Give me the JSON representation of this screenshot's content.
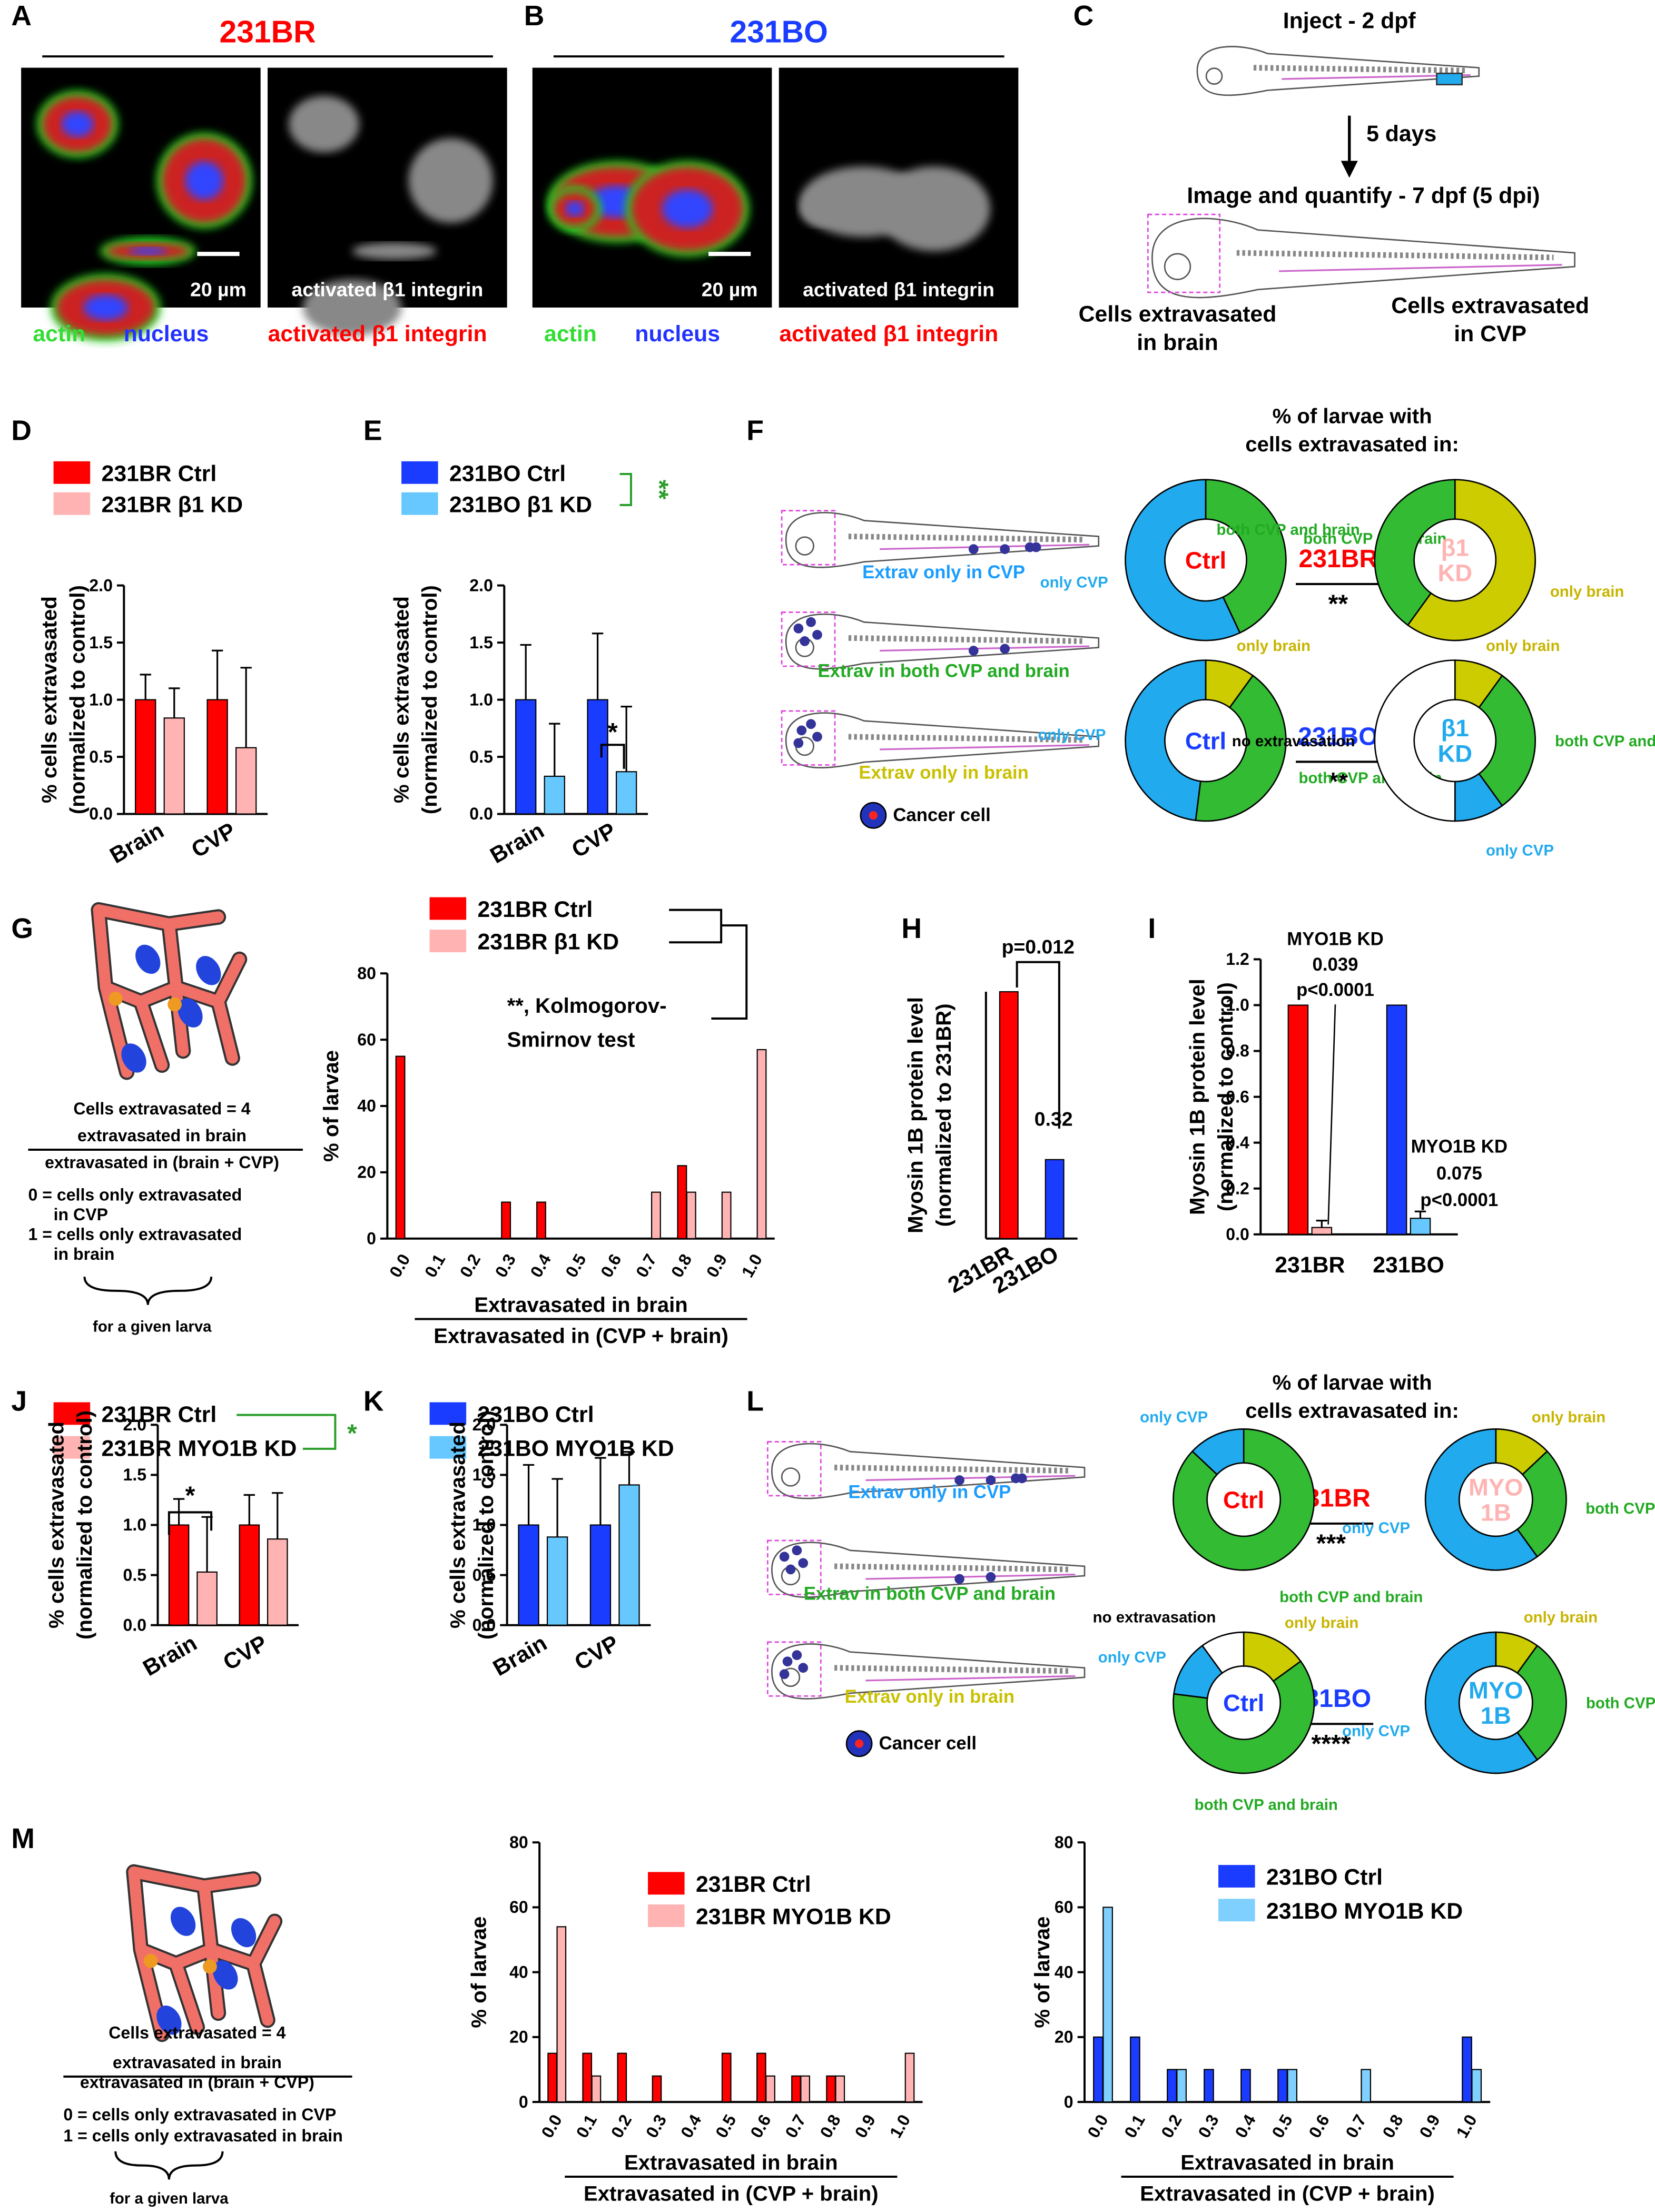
{
  "figure": {
    "letters": [
      "A",
      "B",
      "C",
      "D",
      "E",
      "F",
      "G",
      "H",
      "I",
      "J",
      "K",
      "L",
      "M"
    ],
    "A": {
      "title": "231BR",
      "scale": "20 µm",
      "inset": "activated β1 integrin",
      "stains": [
        "actin",
        "nucleus",
        "activated β1 integrin"
      ]
    },
    "B": {
      "title": "231BO",
      "scale": "20 µm",
      "inset": "activated β1 integrin",
      "stains": [
        "actin",
        "nucleus",
        "activated β1 integrin"
      ]
    },
    "C": {
      "inject": "Inject - 2 dpf",
      "wait": "5 days",
      "image": "Image and quantify - 7 dpf (5 dpi)",
      "brain": [
        "Cells extravasated",
        "in brain"
      ],
      "cvp": [
        "Cells extravasated",
        "in CVP"
      ]
    },
    "F": {
      "title": [
        "% of larvae with",
        "cells extravasated in:"
      ],
      "fish": [
        "Extrav only in CVP",
        "Extrav in both CVP and brain",
        "Extrav only in brain"
      ],
      "cell": "Cancer cell",
      "comparisons": [
        {
          "label": "231BR",
          "significance": "**",
          "color": "#ff0000"
        },
        {
          "label": "231BO",
          "significance": "**",
          "color": "#1a3cff"
        }
      ]
    },
    "G": {
      "count": "Cells extravasated = 4",
      "numerator": "extravasated in brain",
      "denominator": "extravasated in (brain + CVP)",
      "notes": [
        "0 = cells only extravasated",
        "in CVP",
        "1 = cells only extravasated",
        "in brain"
      ],
      "brace": "for a given larva"
    },
    "L": {
      "title": [
        "% of larvae with",
        "cells extravasated in:"
      ],
      "fish": [
        "Extrav only in CVP",
        "Extrav in both CVP and brain",
        "Extrav only in brain"
      ],
      "cell": "Cancer cell",
      "comparisons": [
        {
          "label": "231BR",
          "significance": "***",
          "color": "#ff0000"
        },
        {
          "label": "231BO",
          "significance": "****",
          "color": "#1a3cff"
        }
      ]
    },
    "M": {
      "count": "Cells extravasated = 4",
      "numerator": "extravasated in brain",
      "denominator": "extravasated in (brain + CVP)",
      "notes": [
        "0 = cells only extravasated in CVP",
        "1 = cells only extravasated in brain"
      ],
      "brace": "for a given larva"
    }
  },
  "chart_data": [
    {
      "type": "bar",
      "categories": [
        "Brain",
        "CVP"
      ],
      "series": [
        {
          "name": "231BR Ctrl",
          "color": "#ff0000",
          "values": [
            1.0,
            1.0
          ],
          "errors": [
            0.22,
            0.43
          ]
        },
        {
          "name": "231BR β1 KD",
          "color": "#ffb3b3",
          "values": [
            0.84,
            0.58
          ],
          "errors": [
            0.26,
            0.7
          ]
        }
      ],
      "ylabel": [
        "% cells extravasated",
        "(normalized to control)"
      ],
      "ylim": [
        0,
        2
      ],
      "yticks": [
        {
          "value": 0,
          "label": "0.0"
        },
        0.5,
        {
          "value": 1,
          "label": "1.0"
        },
        1.5,
        {
          "value": 2,
          "label": "2.0"
        }
      ]
    },
    {
      "type": "bar",
      "categories": [
        "Brain",
        "CVP"
      ],
      "series": [
        {
          "name": "231BO Ctrl",
          "color": "#1a3cff",
          "values": [
            1.0,
            1.0
          ],
          "errors": [
            0.48,
            0.58
          ]
        },
        {
          "name": "231BO β1 KD",
          "color": "#66c8ff",
          "values": [
            0.33,
            0.37
          ],
          "errors": [
            0.46,
            0.57
          ]
        }
      ],
      "ylabel": [
        "% cells extravasated",
        "(normalized to control)"
      ],
      "ylim": [
        0,
        2
      ],
      "yticks": [
        {
          "value": 0,
          "label": "0.0"
        },
        0.5,
        {
          "value": 1,
          "label": "1.0"
        },
        1.5,
        {
          "value": 2,
          "label": "2.0"
        }
      ],
      "annotations": [
        "*",
        "**"
      ]
    },
    {
      "type": "bar",
      "categories": [
        "0.0",
        "0.1",
        "0.2",
        "0.3",
        "0.4",
        "0.5",
        "0.6",
        "0.7",
        "0.8",
        "0.9",
        "1.0"
      ],
      "series": [
        {
          "name": "231BR Ctrl",
          "color": "#ff0000",
          "values": [
            55,
            0,
            0,
            11,
            11,
            0,
            0,
            0,
            22,
            0,
            0
          ]
        },
        {
          "name": "231BR β1 KD",
          "color": "#ffb3b3",
          "values": [
            0,
            0,
            0,
            0,
            0,
            0,
            0,
            14,
            14,
            14,
            57
          ]
        }
      ],
      "ylabel": "% of larvae",
      "xlabel": [
        "Extravasated in brain",
        "Extravasated in (CVP + brain)"
      ],
      "ylim": [
        0,
        80
      ],
      "yticks": [
        0,
        20,
        40,
        60,
        80
      ],
      "annotations": [
        "**, Kolmogorov-",
        "Smirnov test"
      ]
    },
    {
      "type": "bar",
      "categories": [
        "231BR",
        "231BO"
      ],
      "series": [
        {
          "colors": [
            "#ff0000",
            "#1a3cff"
          ],
          "values": [
            1.0,
            0.32
          ]
        }
      ],
      "ylabel": [
        "Myosin 1B protein level",
        "(normalized to 231BR)"
      ],
      "ylim": [
        0,
        1
      ],
      "annotations": [
        "p=0.012"
      ]
    },
    {
      "type": "bar",
      "categories": [
        "231BR",
        "231BO"
      ],
      "series": [
        {
          "colors": [
            "#ff0000",
            "#1a3cff"
          ],
          "values": [
            1.0,
            1.0
          ]
        },
        {
          "colors": [
            "#ffb3b3",
            "#66c8ff"
          ],
          "values": [
            0.03,
            0.07
          ],
          "errors": [
            0.03,
            0.03
          ]
        }
      ],
      "ylabel": [
        "Myosin 1B protein level",
        "(normalized to control)"
      ],
      "ylim": [
        0,
        1.2
      ],
      "yticks": [
        {
          "value": 0,
          "label": "0.0"
        },
        0.2,
        0.4,
        0.6,
        0.8,
        {
          "value": 1,
          "label": "1.0"
        },
        1.2
      ],
      "annotations": [
        "MYO1B KD",
        "0.039",
        "p<0.0001",
        "MYO1B KD",
        "0.075",
        "p<0.0001"
      ]
    },
    {
      "type": "bar",
      "categories": [
        "Brain",
        "CVP"
      ],
      "series": [
        {
          "name": "231BR Ctrl",
          "color": "#ff0000",
          "values": [
            1.0,
            1.0
          ],
          "errors": [
            0.26,
            0.3
          ]
        },
        {
          "name": "231BR MYO1B KD",
          "color": "#ffb3b3",
          "values": [
            0.53,
            0.86
          ],
          "errors": [
            0.55,
            0.46
          ]
        }
      ],
      "ylabel": [
        "% cells extravasated",
        "(normalized to control)"
      ],
      "ylim": [
        0,
        2
      ],
      "yticks": [
        {
          "value": 0,
          "label": "0.0"
        },
        0.5,
        {
          "value": 1,
          "label": "1.0"
        },
        1.5,
        {
          "value": 2,
          "label": "2.0"
        }
      ],
      "annotations": [
        "*",
        "*"
      ]
    },
    {
      "type": "bar",
      "categories": [
        "Brain",
        "CVP"
      ],
      "series": [
        {
          "name": "231BO Ctrl",
          "color": "#1a3cff",
          "values": [
            1.0,
            1.0
          ],
          "errors": [
            0.6,
            0.67
          ]
        },
        {
          "name": "231BO MYO1B KD",
          "color": "#66c8ff",
          "values": [
            0.88,
            1.4
          ],
          "errors": [
            0.58,
            0.33
          ]
        }
      ],
      "ylabel": [
        "% cells extravasated",
        "(normalized to control)"
      ],
      "ylim": [
        0,
        2
      ],
      "yticks": [
        {
          "value": 0,
          "label": "0.0"
        },
        0.5,
        {
          "value": 1,
          "label": "1.0"
        },
        1.5,
        {
          "value": 2,
          "label": "2.0"
        }
      ]
    },
    {
      "type": "bar",
      "categories": [
        "0.0",
        "0.1",
        "0.2",
        "0.3",
        "0.4",
        "0.5",
        "0.6",
        "0.7",
        "0.8",
        "0.9",
        "1.0"
      ],
      "series": [
        {
          "name": "231BR Ctrl",
          "color": "#ff0000",
          "values": [
            15,
            15,
            15,
            8,
            0,
            15,
            15,
            8,
            8,
            0,
            0
          ]
        },
        {
          "name": "231BR MYO1B KD",
          "color": "#ffb3b3",
          "values": [
            54,
            8,
            0,
            0,
            0,
            0,
            8,
            8,
            8,
            0,
            15
          ]
        }
      ],
      "ylabel": "% of larvae",
      "xlabel": [
        "Extravasated in brain",
        "Extravasated in (CVP + brain)"
      ],
      "ylim": [
        0,
        80
      ],
      "yticks": [
        0,
        20,
        40,
        60,
        80
      ]
    },
    {
      "type": "bar",
      "categories": [
        "0.0",
        "0.1",
        "0.2",
        "0.3",
        "0.4",
        "0.5",
        "0.6",
        "0.7",
        "0.8",
        "0.9",
        "1.0"
      ],
      "series": [
        {
          "name": "231BO Ctrl",
          "color": "#1a3cff",
          "values": [
            20,
            20,
            10,
            10,
            10,
            10,
            0,
            0,
            0,
            0,
            20
          ]
        },
        {
          "name": "231BO MYO1B KD",
          "color": "#7fd0ff",
          "values": [
            60,
            0,
            10,
            0,
            0,
            10,
            0,
            10,
            0,
            0,
            10
          ]
        }
      ],
      "ylabel": "% of larvae",
      "xlabel": [
        "Extravasated in brain",
        "Extravasated in (CVP + brain)"
      ],
      "ylim": [
        0,
        80
      ],
      "yticks": [
        0,
        20,
        40,
        60,
        80
      ]
    },
    {
      "type": "pie",
      "center": [
        "Ctrl"
      ],
      "center_color": "#ff0000",
      "categories": [
        "both CVP and brain",
        "only CVP"
      ],
      "values": [
        43,
        57
      ],
      "colors": [
        "#33bb33",
        "#22aaee"
      ]
    },
    {
      "type": "pie",
      "center": [
        "β1",
        "KD"
      ],
      "center_color": "#ffb3b3",
      "categories": [
        "only brain",
        "both CVP and brain"
      ],
      "values": [
        60,
        40
      ],
      "colors": [
        "#cccc00",
        "#33bb33"
      ]
    },
    {
      "type": "pie",
      "center": [
        "Ctrl"
      ],
      "center_color": "#1a3cff",
      "categories": [
        "only brain",
        "both CVP and brain",
        "only CVP"
      ],
      "values": [
        10,
        42,
        48
      ],
      "colors": [
        "#cccc00",
        "#33bb33",
        "#22aaee"
      ]
    },
    {
      "type": "pie",
      "center": [
        "β1",
        "KD"
      ],
      "center_color": "#22aaee",
      "categories": [
        "only brain",
        "both CVP and brain",
        "only CVP",
        "no extravasation"
      ],
      "values": [
        10,
        30,
        10,
        50
      ],
      "colors": [
        "#cccc00",
        "#33bb33",
        "#22aaee",
        "#ffffff"
      ]
    },
    {
      "type": "pie",
      "center": [
        "Ctrl"
      ],
      "center_color": "#ff0000",
      "categories": [
        "both CVP and brain",
        "only CVP"
      ],
      "values": [
        87,
        13
      ],
      "colors": [
        "#33bb33",
        "#22aaee"
      ]
    },
    {
      "type": "pie",
      "center": [
        "MYO",
        "1B"
      ],
      "center_color": "#ffb3b3",
      "categories": [
        "only brain",
        "both CVP and brain",
        "only CVP"
      ],
      "values": [
        13,
        27,
        60
      ],
      "colors": [
        "#cccc00",
        "#33bb33",
        "#22aaee"
      ]
    },
    {
      "type": "pie",
      "center": [
        "Ctrl"
      ],
      "center_color": "#1a3cff",
      "categories": [
        "only brain",
        "both CVP and brain",
        "only CVP",
        "no extravasation"
      ],
      "values": [
        15,
        62,
        13,
        10
      ],
      "colors": [
        "#cccc00",
        "#33bb33",
        "#22aaee",
        "#ffffff"
      ]
    },
    {
      "type": "pie",
      "center": [
        "MYO",
        "1B"
      ],
      "center_color": "#22aaee",
      "categories": [
        "only brain",
        "both CVP and brain",
        "only CVP"
      ],
      "values": [
        10,
        30,
        60
      ],
      "colors": [
        "#cccc00",
        "#33bb33",
        "#22aaee"
      ]
    }
  ]
}
